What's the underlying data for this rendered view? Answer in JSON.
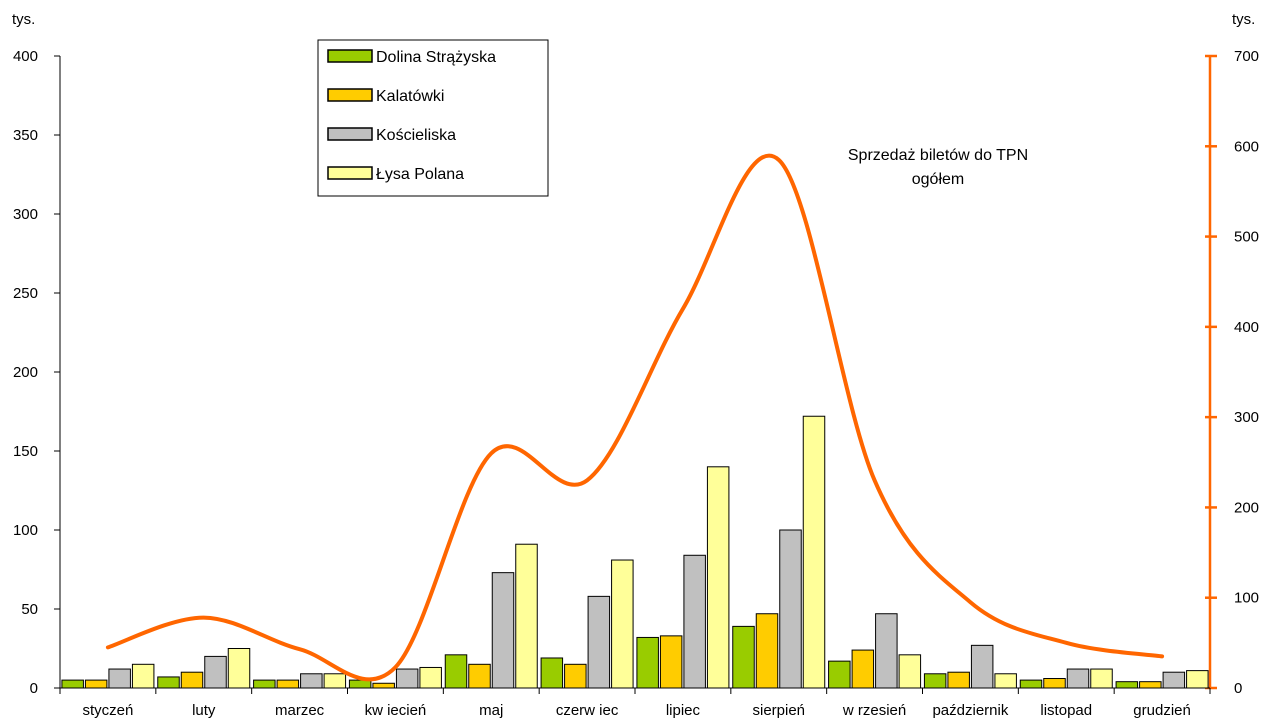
{
  "chart_data": {
    "type": "bar",
    "categories": [
      "styczeń",
      "luty",
      "marzec",
      "kw iecień",
      "maj",
      "czerw iec",
      "lipiec",
      "sierpień",
      "w rzesień",
      "październik",
      "listopad",
      "grudzień"
    ],
    "series": [
      {
        "name": "Dolina Strążyska",
        "values": [
          5,
          7,
          5,
          5,
          21,
          19,
          32,
          39,
          17,
          9,
          5,
          4
        ],
        "color": "#99cc00"
      },
      {
        "name": "Kalatówki",
        "values": [
          5,
          10,
          5,
          3,
          15,
          15,
          33,
          47,
          24,
          10,
          6,
          4
        ],
        "color": "#ffcc00"
      },
      {
        "name": "Kościeliska",
        "values": [
          12,
          20,
          9,
          12,
          73,
          58,
          84,
          100,
          47,
          27,
          12,
          10
        ],
        "color": "#c0c0c0"
      },
      {
        "name": "Łysa Polana",
        "values": [
          15,
          25,
          9,
          13,
          91,
          81,
          140,
          172,
          21,
          9,
          12,
          11
        ],
        "color": "#ffff99"
      }
    ],
    "total_series": {
      "name": "Sprzedaż biletów do TPN ogółem",
      "axis": "right",
      "values": [
        45,
        78,
        43,
        23,
        260,
        230,
        420,
        585,
        230,
        95,
        50,
        35
      ],
      "color": "#ff6600"
    },
    "left_axis": {
      "unit": "tys.",
      "ylim": [
        0,
        400
      ],
      "ticks": [
        0,
        50,
        100,
        150,
        200,
        250,
        300,
        350,
        400
      ]
    },
    "right_axis": {
      "unit": "tys.",
      "ylim": [
        0,
        700
      ],
      "ticks": [
        0,
        100,
        200,
        300,
        400,
        500,
        600,
        700
      ]
    },
    "legend_position": "top-left",
    "annotation_line1": "Sprzedaż biletów do TPN",
    "annotation_line2": "ogółem",
    "grid": false
  }
}
